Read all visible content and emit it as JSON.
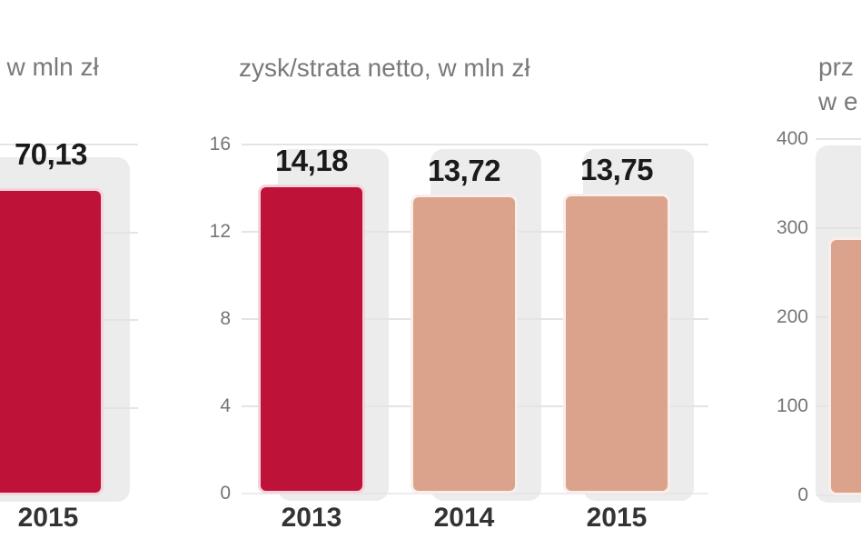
{
  "page": {
    "background": "#ffffff",
    "description": "three-panel bar chart graphic, left and right panels cropped by image edges"
  },
  "colors": {
    "highlight_bar": "#bf1238",
    "normal_bar": "#dca38c",
    "ghost_track": "#ececec",
    "gridline": "#e4e4e4",
    "tick_text": "#757575",
    "title_text": "#7a7a7a",
    "value_text": "#1a1a1a",
    "year_text": "#333333"
  },
  "chart_data": [
    {
      "type": "bar",
      "title": ", w mln zł",
      "title_note": "title cropped at left image edge, only 'w mln zł' fully visible",
      "categories": [
        "2015"
      ],
      "values": [
        70.13
      ],
      "value_labels": [
        "70,13"
      ],
      "ylim": [
        0,
        80
      ],
      "yticks": [
        20,
        40,
        60,
        80
      ],
      "ytick_labels": [],
      "bar_colors": [
        "#bf1238"
      ],
      "grid": true,
      "legend": "none"
    },
    {
      "type": "bar",
      "title": "zysk/strata netto, w mln zł",
      "categories": [
        "2013",
        "2014",
        "2015"
      ],
      "values": [
        14.18,
        13.72,
        13.75
      ],
      "value_labels": [
        "14,18",
        "13,72",
        "13,75"
      ],
      "ylim": [
        0,
        16
      ],
      "yticks": [
        0,
        4,
        8,
        12,
        16
      ],
      "ytick_labels": [
        "0",
        "4",
        "8",
        "12",
        "16"
      ],
      "bar_colors": [
        "#bf1238",
        "#dca38c",
        "#dca38c"
      ],
      "grid": true,
      "legend": "none"
    },
    {
      "type": "bar",
      "title_line1": "prz",
      "title_line2": "w e",
      "title_note": "title cropped at right image edge",
      "categories": [
        ""
      ],
      "values": [
        290
      ],
      "value_labels": [],
      "ylim": [
        0,
        400
      ],
      "yticks": [
        0,
        100,
        200,
        300,
        400
      ],
      "ytick_labels": [
        "0",
        "100",
        "200",
        "300",
        "400"
      ],
      "bar_colors": [
        "#dca38c"
      ],
      "grid": true,
      "legend": "none",
      "note": "bar cropped at right image edge, value label not visible"
    }
  ]
}
